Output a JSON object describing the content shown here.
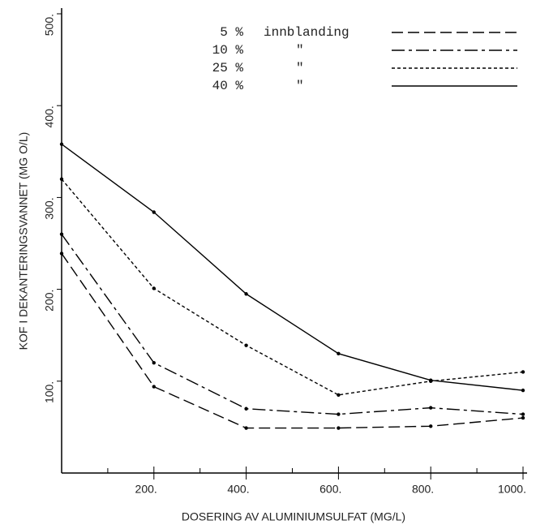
{
  "chart_data": {
    "type": "line",
    "xlabel": "DOSERING AV ALUMINIUMSULFAT (MG/L)",
    "ylabel": "KOF I DEKANTERINGSVANNET (MG O/L)",
    "x": [
      0,
      200,
      400,
      600,
      800,
      1000
    ],
    "xlim": [
      0,
      1000
    ],
    "ylim": [
      0,
      500
    ],
    "xticks": [
      {
        "value": 200,
        "label": "200."
      },
      {
        "value": 400,
        "label": "400."
      },
      {
        "value": 600,
        "label": "600."
      },
      {
        "value": 800,
        "label": "800."
      },
      {
        "value": 1000,
        "label": "1000."
      }
    ],
    "xminorticks": [
      100,
      300,
      500,
      700,
      900
    ],
    "yticks": [
      {
        "value": 100,
        "label": "100."
      },
      {
        "value": 200,
        "label": "200."
      },
      {
        "value": 300,
        "label": "300."
      },
      {
        "value": 400,
        "label": "400."
      },
      {
        "value": 500,
        "label": "500."
      }
    ],
    "legend_note": [
      "innblanding",
      "\"",
      "\"",
      "\""
    ],
    "series": [
      {
        "name": "5 %",
        "color": "#000000",
        "dash": "14 6",
        "values": [
          239,
          94,
          49,
          49,
          51,
          60
        ]
      },
      {
        "name": "10 %",
        "color": "#000000",
        "dash": "16 5 4 5",
        "values": [
          260,
          120,
          70,
          64,
          71,
          64
        ]
      },
      {
        "name": "25 %",
        "color": "#000000",
        "dash": "4 3",
        "values": [
          320,
          201,
          139,
          85,
          100,
          110
        ]
      },
      {
        "name": "40 %",
        "color": "#000000",
        "dash": "none",
        "values": [
          358,
          284,
          195,
          130,
          101,
          90
        ]
      }
    ]
  }
}
